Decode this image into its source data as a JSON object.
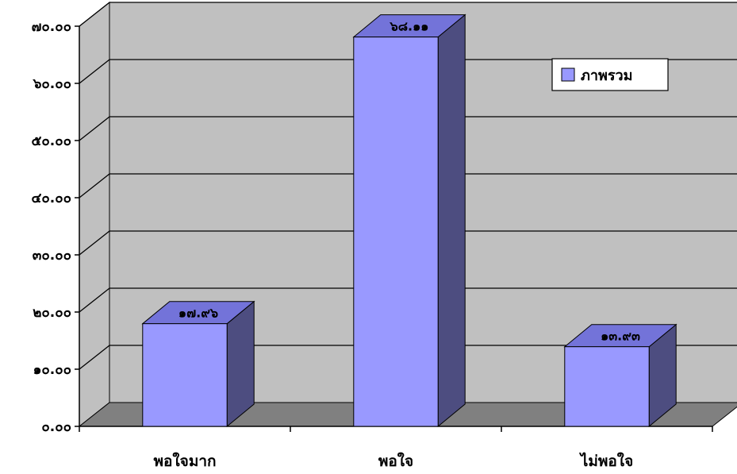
{
  "chart_data": {
    "type": "bar",
    "style": "3d-column",
    "categories": [
      "พอใจมาก",
      "พอใจ",
      "ไม่พอใจ"
    ],
    "series": [
      {
        "name": "ภาพรวม",
        "values": [
          17.96,
          68.11,
          13.93
        ],
        "color": "#9999ff"
      }
    ],
    "data_labels": [
      "๑๗.๙๖",
      "๖๘.๑๑",
      "๑๓.๙๓"
    ],
    "y_tick_labels": [
      "๐.๐๐",
      "๑๐.๐๐",
      "๒๐.๐๐",
      "๓๐.๐๐",
      "๔๐.๐๐",
      "๕๐.๐๐",
      "๖๐.๐๐",
      "๗๐.๐๐"
    ],
    "ylim": [
      0,
      70
    ],
    "title": "",
    "xlabel": "",
    "ylabel": "",
    "grid": true,
    "legend": "top-right",
    "colors": {
      "wall": "#c0c0c0",
      "floor": "#808080",
      "bar_front": "#9999ff",
      "bar_side": "#4d4d80",
      "bar_top": "#7373d9"
    }
  }
}
